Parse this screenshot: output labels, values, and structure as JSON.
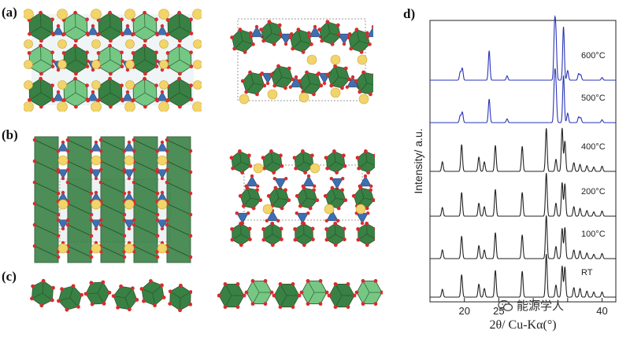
{
  "panels": {
    "a": {
      "label": "(a)"
    },
    "b": {
      "label": "(b)"
    },
    "c": {
      "label": "(c)"
    },
    "d": {
      "label": "d)"
    }
  },
  "colors": {
    "octahedron": "#2f7a3b",
    "octahedron_light": "#6fc57e",
    "tetrahedron": "#3f6fb0",
    "a_site": "#f2d46a",
    "oxygen": "#d62d2d",
    "trace_high_t": "#2a35b8",
    "trace_low_t": "#222222"
  },
  "watermark": {
    "text": "能源学人",
    "icon": "wechat-bubble-icon"
  },
  "chart_data": {
    "type": "line",
    "title": "",
    "xlabel": "2θ/ Cu-Kα(°)",
    "ylabel": "Intensity/ a.u.",
    "xlim": [
      15,
      42
    ],
    "xticks": [
      20,
      25,
      30,
      35,
      40
    ],
    "xtick_labels": [
      "20",
      "25",
      "",
      "",
      "40"
    ],
    "offset_stacked": true,
    "series": [
      {
        "name": "600°C",
        "color": "#2a35b8",
        "peaks": [
          [
            19.4,
            0.15
          ],
          [
            19.7,
            0.22
          ],
          [
            23.6,
            0.55
          ],
          [
            26.2,
            0.08
          ],
          [
            33.1,
            0.92
          ],
          [
            33.3,
            0.75
          ],
          [
            34.4,
            1.0
          ],
          [
            35.0,
            0.18
          ],
          [
            36.6,
            0.12
          ],
          [
            36.9,
            0.1
          ],
          [
            40.0,
            0.05
          ]
        ]
      },
      {
        "name": "500°C",
        "color": "#2a35b8",
        "peaks": [
          [
            19.4,
            0.15
          ],
          [
            19.7,
            0.22
          ],
          [
            23.6,
            0.5
          ],
          [
            26.2,
            0.08
          ],
          [
            33.1,
            0.9
          ],
          [
            33.3,
            0.7
          ],
          [
            34.4,
            1.0
          ],
          [
            35.0,
            0.2
          ],
          [
            36.6,
            0.12
          ],
          [
            36.9,
            0.1
          ],
          [
            40.0,
            0.06
          ]
        ]
      },
      {
        "name": "400°C",
        "color": "#222222",
        "peaks": [
          [
            16.8,
            0.22
          ],
          [
            19.6,
            0.62
          ],
          [
            22.1,
            0.33
          ],
          [
            22.9,
            0.22
          ],
          [
            24.5,
            0.6
          ],
          [
            28.4,
            0.58
          ],
          [
            31.9,
            1.0
          ],
          [
            33.3,
            0.28
          ],
          [
            34.2,
            1.0
          ],
          [
            34.6,
            0.7
          ],
          [
            35.9,
            0.2
          ],
          [
            36.8,
            0.16
          ],
          [
            37.8,
            0.13
          ],
          [
            38.8,
            0.1
          ],
          [
            40.0,
            0.12
          ]
        ]
      },
      {
        "name": "200°C",
        "color": "#222222",
        "peaks": [
          [
            16.8,
            0.2
          ],
          [
            19.6,
            0.55
          ],
          [
            22.1,
            0.3
          ],
          [
            22.9,
            0.22
          ],
          [
            24.5,
            0.62
          ],
          [
            28.4,
            0.55
          ],
          [
            31.9,
            1.0
          ],
          [
            33.3,
            0.3
          ],
          [
            34.2,
            0.78
          ],
          [
            34.6,
            0.75
          ],
          [
            35.9,
            0.22
          ],
          [
            36.8,
            0.18
          ],
          [
            37.8,
            0.13
          ],
          [
            38.8,
            0.1
          ],
          [
            40.0,
            0.12
          ]
        ]
      },
      {
        "name": "100°C",
        "color": "#222222",
        "peaks": [
          [
            16.8,
            0.2
          ],
          [
            19.6,
            0.52
          ],
          [
            22.1,
            0.3
          ],
          [
            22.9,
            0.2
          ],
          [
            24.5,
            0.6
          ],
          [
            28.4,
            0.55
          ],
          [
            31.9,
            1.0
          ],
          [
            33.3,
            0.28
          ],
          [
            34.2,
            0.7
          ],
          [
            34.6,
            0.72
          ],
          [
            35.9,
            0.2
          ],
          [
            36.8,
            0.18
          ],
          [
            37.8,
            0.13
          ],
          [
            38.8,
            0.1
          ],
          [
            40.0,
            0.12
          ]
        ]
      },
      {
        "name": "RT",
        "color": "#222222",
        "peaks": [
          [
            16.8,
            0.18
          ],
          [
            19.6,
            0.52
          ],
          [
            22.1,
            0.3
          ],
          [
            22.9,
            0.2
          ],
          [
            24.5,
            0.62
          ],
          [
            28.4,
            0.6
          ],
          [
            31.9,
            1.0
          ],
          [
            33.3,
            0.28
          ],
          [
            34.2,
            0.72
          ],
          [
            34.6,
            0.7
          ],
          [
            35.9,
            0.22
          ],
          [
            36.8,
            0.2
          ],
          [
            37.8,
            0.14
          ],
          [
            38.8,
            0.12
          ],
          [
            40.0,
            0.12
          ]
        ]
      }
    ]
  }
}
